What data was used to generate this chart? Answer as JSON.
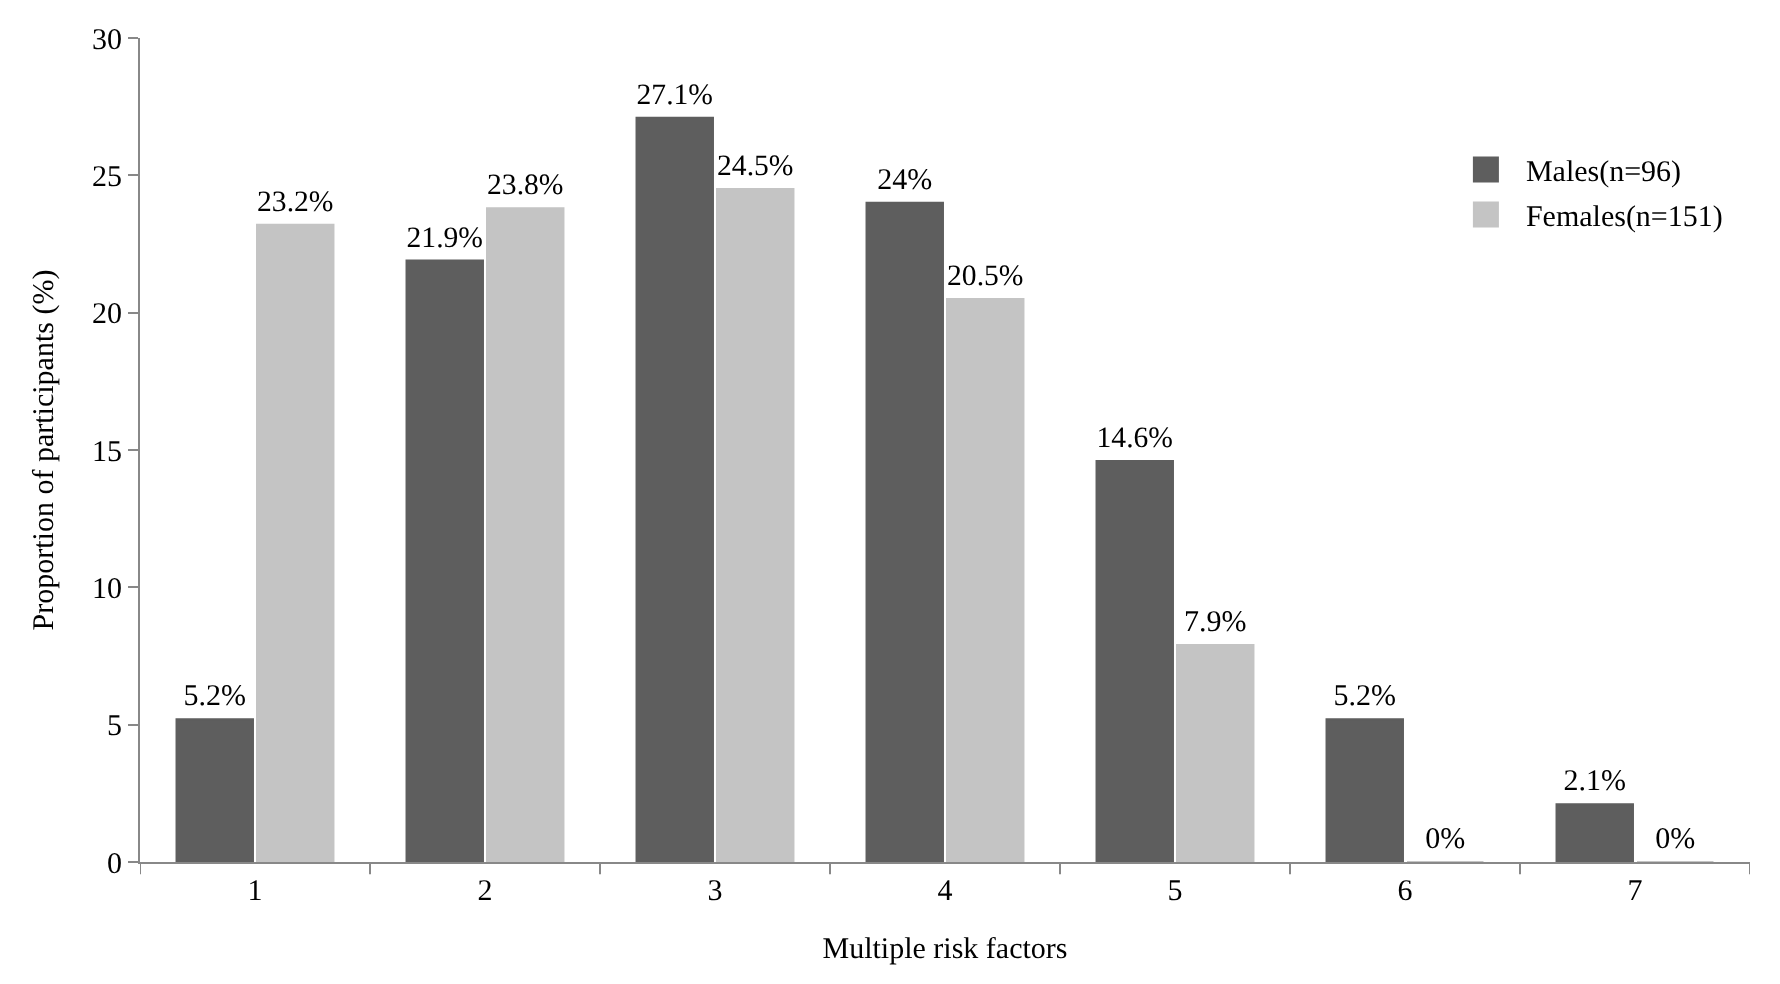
{
  "chart_data": {
    "type": "bar",
    "xlabel": "Multiple risk factors",
    "ylabel": "Proportion of participants (%)",
    "categories": [
      "1",
      "2",
      "3",
      "4",
      "5",
      "6",
      "7"
    ],
    "series": [
      {
        "name": "Males(n=96)",
        "color": "#5e5e5e",
        "values": [
          5.2,
          21.9,
          27.1,
          24,
          14.6,
          5.2,
          2.1
        ],
        "value_labels": [
          "5.2%",
          "21.9%",
          "27.1%",
          "24%",
          "14.6%",
          "5.2%",
          "2.1%"
        ]
      },
      {
        "name": "Females(n=151)",
        "color": "#c4c4c4",
        "values": [
          23.2,
          23.8,
          24.5,
          20.5,
          7.9,
          0,
          0
        ],
        "value_labels": [
          "23.2%",
          "23.8%",
          "24.5%",
          "20.5%",
          "7.9%",
          "0%",
          "0%"
        ]
      }
    ],
    "ylim": [
      0,
      30
    ],
    "yticks": [
      0,
      5,
      10,
      15,
      20,
      25,
      30
    ],
    "legend": "top right"
  }
}
